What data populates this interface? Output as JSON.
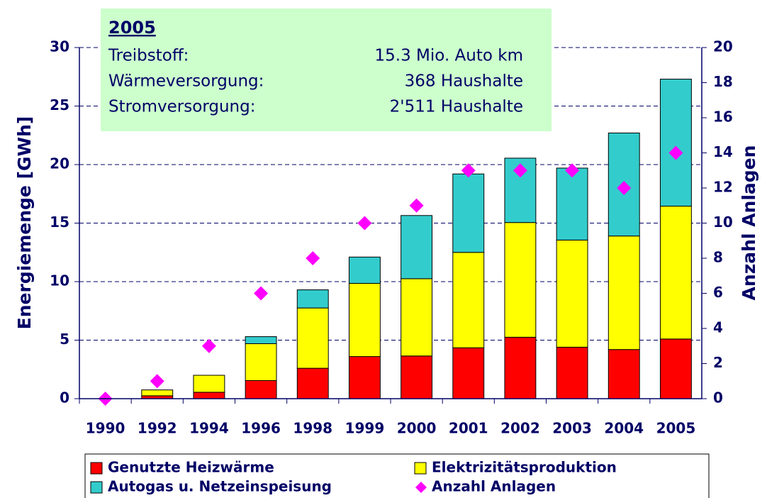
{
  "chart_data": {
    "type": "bar",
    "stacked": true,
    "y_label": "Energiemenge [GWh]",
    "y2_label": "Anzahl Anlagen",
    "categories": [
      "1990",
      "1992",
      "1994",
      "1996",
      "1998",
      "1999",
      "2000",
      "2001",
      "2002",
      "2003",
      "2004",
      "2005"
    ],
    "series": [
      {
        "name": "Genutzte Heizwärme",
        "color": "#ff0000",
        "type": "bar",
        "values": [
          0,
          0.25,
          0.55,
          1.55,
          2.6,
          3.6,
          3.65,
          4.35,
          5.25,
          4.4,
          4.2,
          5.1
        ]
      },
      {
        "name": "Elektrizitätsproduktion",
        "color": "#ffff00",
        "type": "bar",
        "values": [
          0,
          0.5,
          1.45,
          3.15,
          5.15,
          6.25,
          6.6,
          8.15,
          9.8,
          9.15,
          9.7,
          11.35
        ]
      },
      {
        "name": "Autogas u. Netzeinspeisung",
        "color": "#33cccc",
        "type": "bar",
        "values": [
          0,
          0,
          0,
          0.6,
          1.55,
          2.25,
          5.4,
          6.7,
          5.5,
          6.15,
          8.8,
          10.85
        ]
      },
      {
        "name": "Anzahl Anlagen",
        "color": "#ff00ff",
        "type": "scatter",
        "axis": "y2",
        "values": [
          0,
          1,
          3,
          6,
          8,
          10,
          11,
          13,
          13,
          13,
          12,
          14
        ]
      }
    ],
    "ylim": [
      0,
      30
    ],
    "yticks": [
      0,
      5,
      10,
      15,
      20,
      25,
      30
    ],
    "y2lim": [
      0,
      20
    ],
    "y2ticks": [
      0,
      2,
      4,
      6,
      8,
      10,
      12,
      14,
      16,
      18,
      20
    ],
    "grid": true,
    "info_box": {
      "title": "2005",
      "rows": [
        [
          "Treibstoff:",
          "15.3 Mio. Auto km"
        ],
        [
          "Wärmeversorgung:",
          "368 Haushalte"
        ],
        [
          "Stromversorgung:",
          "2'511 Haushalte"
        ]
      ]
    }
  }
}
